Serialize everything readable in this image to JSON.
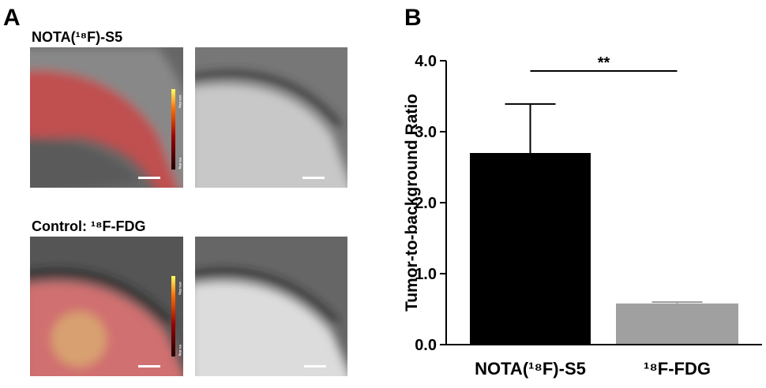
{
  "panel_a": {
    "label": "A",
    "rows": [
      {
        "title": "NOTA(¹⁸F)-S5",
        "colorbar_max": "10% ID/g",
        "colorbar_min": "0% ID/g"
      },
      {
        "title": "Control: ¹⁸F-FDG",
        "colorbar_max": "10% ID/g",
        "colorbar_min": "0% ID/g"
      }
    ]
  },
  "chart_data": {
    "type": "bar",
    "panel_label": "B",
    "y_label": "Tumor-to-background Ratio",
    "categories": [
      "NOTA(¹⁸F)-S5",
      "¹⁸F-FDG"
    ],
    "values": [
      2.7,
      0.58
    ],
    "errors": [
      0.69,
      0.02
    ],
    "colors": [
      "#000000",
      "#a0a0a0"
    ],
    "annotation": "**",
    "ylim": [
      0,
      4
    ],
    "yticks": [
      {
        "value": 0,
        "label": "0.0"
      },
      {
        "value": 1,
        "label": "1.0"
      },
      {
        "value": 2,
        "label": "2.0"
      },
      {
        "value": 3,
        "label": "3.0"
      },
      {
        "value": 4,
        "label": "4.0"
      }
    ]
  }
}
